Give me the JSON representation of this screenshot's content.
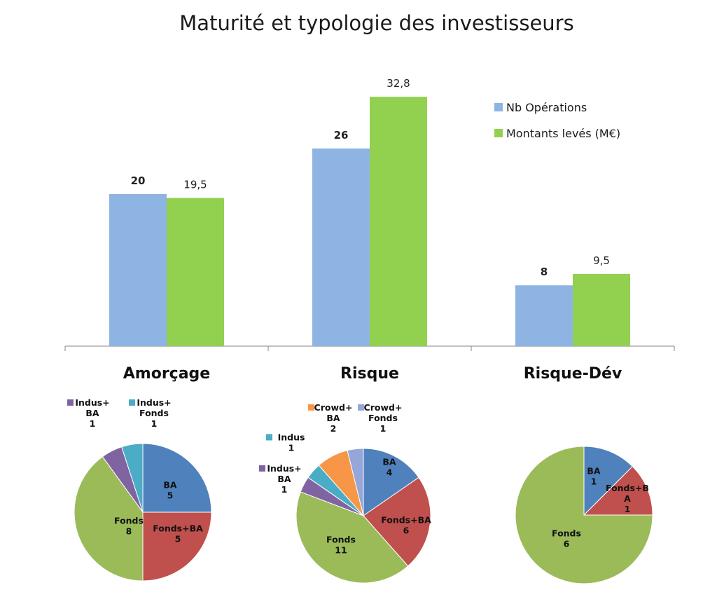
{
  "chart_data": [
    {
      "type": "bar",
      "title": "Maturité et typologie des investisseurs",
      "categories": [
        "Amorçage",
        "Risque",
        "Risque-Dév"
      ],
      "series": [
        {
          "name": "Nb Opérations",
          "values": [
            20,
            26,
            8
          ],
          "labels": [
            "20",
            "26",
            "8"
          ],
          "color": "#8eb4e3"
        },
        {
          "name": "Montants levés  (M€)",
          "values": [
            19.5,
            32.8,
            9.5
          ],
          "labels": [
            "19,5",
            "32,8",
            "9,5"
          ],
          "color": "#92d050"
        }
      ],
      "ylim": [
        0,
        40
      ],
      "grid": false,
      "legend": "top-right"
    },
    {
      "type": "pie",
      "category": "Amorçage",
      "slices": [
        {
          "label": "BA",
          "value": 5,
          "color": "#4f81bd"
        },
        {
          "label": "Fonds+BA",
          "value": 5,
          "color": "#c0504d"
        },
        {
          "label": "Fonds",
          "value": 8,
          "color": "#9bbb59"
        },
        {
          "label": "Indus+\nBA",
          "value": 1,
          "color": "#8064a2"
        },
        {
          "label": "Indus+\nFonds",
          "value": 1,
          "color": "#4bacc6"
        }
      ]
    },
    {
      "type": "pie",
      "category": "Risque",
      "slices": [
        {
          "label": "BA",
          "value": 4,
          "color": "#4f81bd"
        },
        {
          "label": "Fonds+BA",
          "value": 6,
          "color": "#c0504d"
        },
        {
          "label": "Fonds",
          "value": 11,
          "color": "#9bbb59"
        },
        {
          "label": "Indus+\nBA",
          "value": 1,
          "color": "#8064a2"
        },
        {
          "label": "Indus",
          "value": 1,
          "color": "#4bacc6"
        },
        {
          "label": "Crowd+\nBA",
          "value": 2,
          "color": "#f79646"
        },
        {
          "label": "Crowd+\nFonds",
          "value": 1,
          "color": "#95a7d8"
        }
      ]
    },
    {
      "type": "pie",
      "category": "Risque-Dév",
      "slices": [
        {
          "label": "BA",
          "value": 1,
          "color": "#4f81bd"
        },
        {
          "label": "Fonds+B\nA",
          "value": 1,
          "color": "#c0504d"
        },
        {
          "label": "Fonds",
          "value": 6,
          "color": "#9bbb59"
        }
      ]
    }
  ]
}
